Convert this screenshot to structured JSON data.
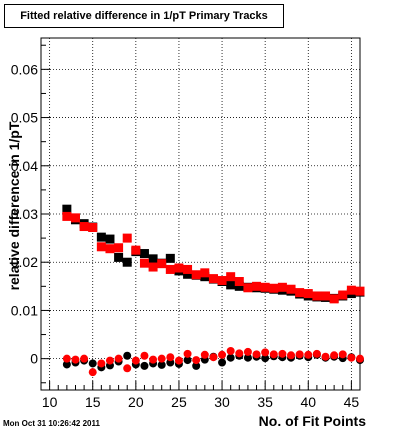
{
  "header": {
    "title": "Fitted relative difference in 1/pT Primary Tracks",
    "timestamp": "Mon Oct 31 10:26:42 2011"
  },
  "chart_data": {
    "type": "scatter",
    "title": "Fitted relative difference in 1/pT Primary Tracks",
    "xlabel": "No. of Fit Points",
    "ylabel": "relative difference in 1/pT",
    "xlim": [
      9,
      46
    ],
    "ylim": [
      -0.0065,
      0.0665
    ],
    "x_ticks": [
      10,
      15,
      20,
      25,
      30,
      35,
      40,
      45
    ],
    "x_tick_labels": [
      "10",
      "15",
      "20",
      "25",
      "30",
      "35",
      "40",
      "45"
    ],
    "y_ticks": [
      0,
      0.01,
      0.02,
      0.03,
      0.04,
      0.05,
      0.06
    ],
    "y_tick_labels": [
      "0",
      "0.01",
      "0.02",
      "0.03",
      "0.04",
      "0.05",
      "0.06"
    ],
    "grid": true,
    "series": [
      {
        "marker": "square",
        "color": "#000000",
        "x": [
          12,
          13,
          14,
          15,
          16,
          17,
          18,
          19,
          20,
          21,
          22,
          23,
          24,
          25,
          26,
          27,
          28,
          29,
          30,
          31,
          32,
          33,
          34,
          35,
          36,
          37,
          38,
          39,
          40,
          41,
          42,
          43,
          44,
          45,
          46
        ],
        "values": [
          0.031,
          0.0288,
          0.028,
          0.0273,
          0.0252,
          0.0248,
          0.021,
          0.02,
          0.0222,
          0.0218,
          0.0207,
          0.0198,
          0.0208,
          0.0182,
          0.0175,
          0.0173,
          0.017,
          0.0165,
          0.016,
          0.0153,
          0.015,
          0.0148,
          0.0147,
          0.0146,
          0.0144,
          0.0142,
          0.014,
          0.0134,
          0.013,
          0.0128,
          0.0127,
          0.0125,
          0.013,
          0.0135,
          0.0138
        ]
      },
      {
        "marker": "square",
        "color": "#ff0000",
        "x": [
          12,
          13,
          14,
          15,
          16,
          17,
          18,
          19,
          20,
          21,
          22,
          23,
          24,
          25,
          26,
          27,
          28,
          29,
          30,
          31,
          32,
          33,
          34,
          35,
          36,
          37,
          38,
          39,
          40,
          41,
          42,
          43,
          44,
          45,
          46
        ],
        "values": [
          0.0295,
          0.0292,
          0.0274,
          0.0272,
          0.0232,
          0.0228,
          0.023,
          0.025,
          0.0225,
          0.0198,
          0.019,
          0.0197,
          0.0185,
          0.0188,
          0.0185,
          0.0174,
          0.0178,
          0.0166,
          0.0162,
          0.017,
          0.016,
          0.0147,
          0.015,
          0.0148,
          0.0146,
          0.0148,
          0.0144,
          0.0137,
          0.0135,
          0.013,
          0.013,
          0.0124,
          0.0132,
          0.0142,
          0.014
        ]
      },
      {
        "marker": "circle",
        "color": "#000000",
        "x": [
          12,
          13,
          14,
          15,
          16,
          17,
          18,
          19,
          20,
          21,
          22,
          23,
          24,
          25,
          26,
          27,
          28,
          29,
          30,
          31,
          32,
          33,
          34,
          35,
          36,
          37,
          38,
          39,
          40,
          41,
          42,
          43,
          44,
          45,
          46
        ],
        "values": [
          -0.0012,
          -0.0008,
          -0.0004,
          -0.001,
          -0.0018,
          -0.0014,
          -0.0006,
          0.0006,
          -0.0012,
          -0.0015,
          -0.001,
          -0.0013,
          -0.0008,
          -0.0011,
          -0.0003,
          -0.0015,
          -0.0002,
          0.0004,
          -0.0008,
          0.0002,
          0.0006,
          0.0002,
          0.0004,
          0.0001,
          0.0005,
          0.0003,
          0.0002,
          0.0006,
          0.0003,
          0.0008,
          0.0002,
          0.0004,
          0.0001,
          0.0003,
          -0.0003
        ]
      },
      {
        "marker": "circle",
        "color": "#ff0000",
        "x": [
          12,
          13,
          14,
          15,
          16,
          17,
          18,
          19,
          20,
          21,
          22,
          23,
          24,
          25,
          26,
          27,
          28,
          29,
          30,
          31,
          32,
          33,
          34,
          35,
          36,
          37,
          38,
          39,
          40,
          41,
          42,
          43,
          44,
          45,
          46
        ],
        "values": [
          0.0,
          -0.0002,
          0.0,
          -0.0028,
          -0.001,
          -0.0004,
          0.0,
          -0.002,
          -0.0004,
          0.0006,
          -0.0002,
          0.0,
          0.0003,
          -0.0004,
          0.001,
          -0.0003,
          0.0008,
          0.0003,
          0.0008,
          0.0016,
          0.0011,
          0.0014,
          0.0009,
          0.0013,
          0.0009,
          0.001,
          0.0007,
          0.0009,
          0.0008,
          0.001,
          0.0004,
          0.0007,
          0.0009,
          0.0002,
          0.0
        ]
      }
    ]
  }
}
